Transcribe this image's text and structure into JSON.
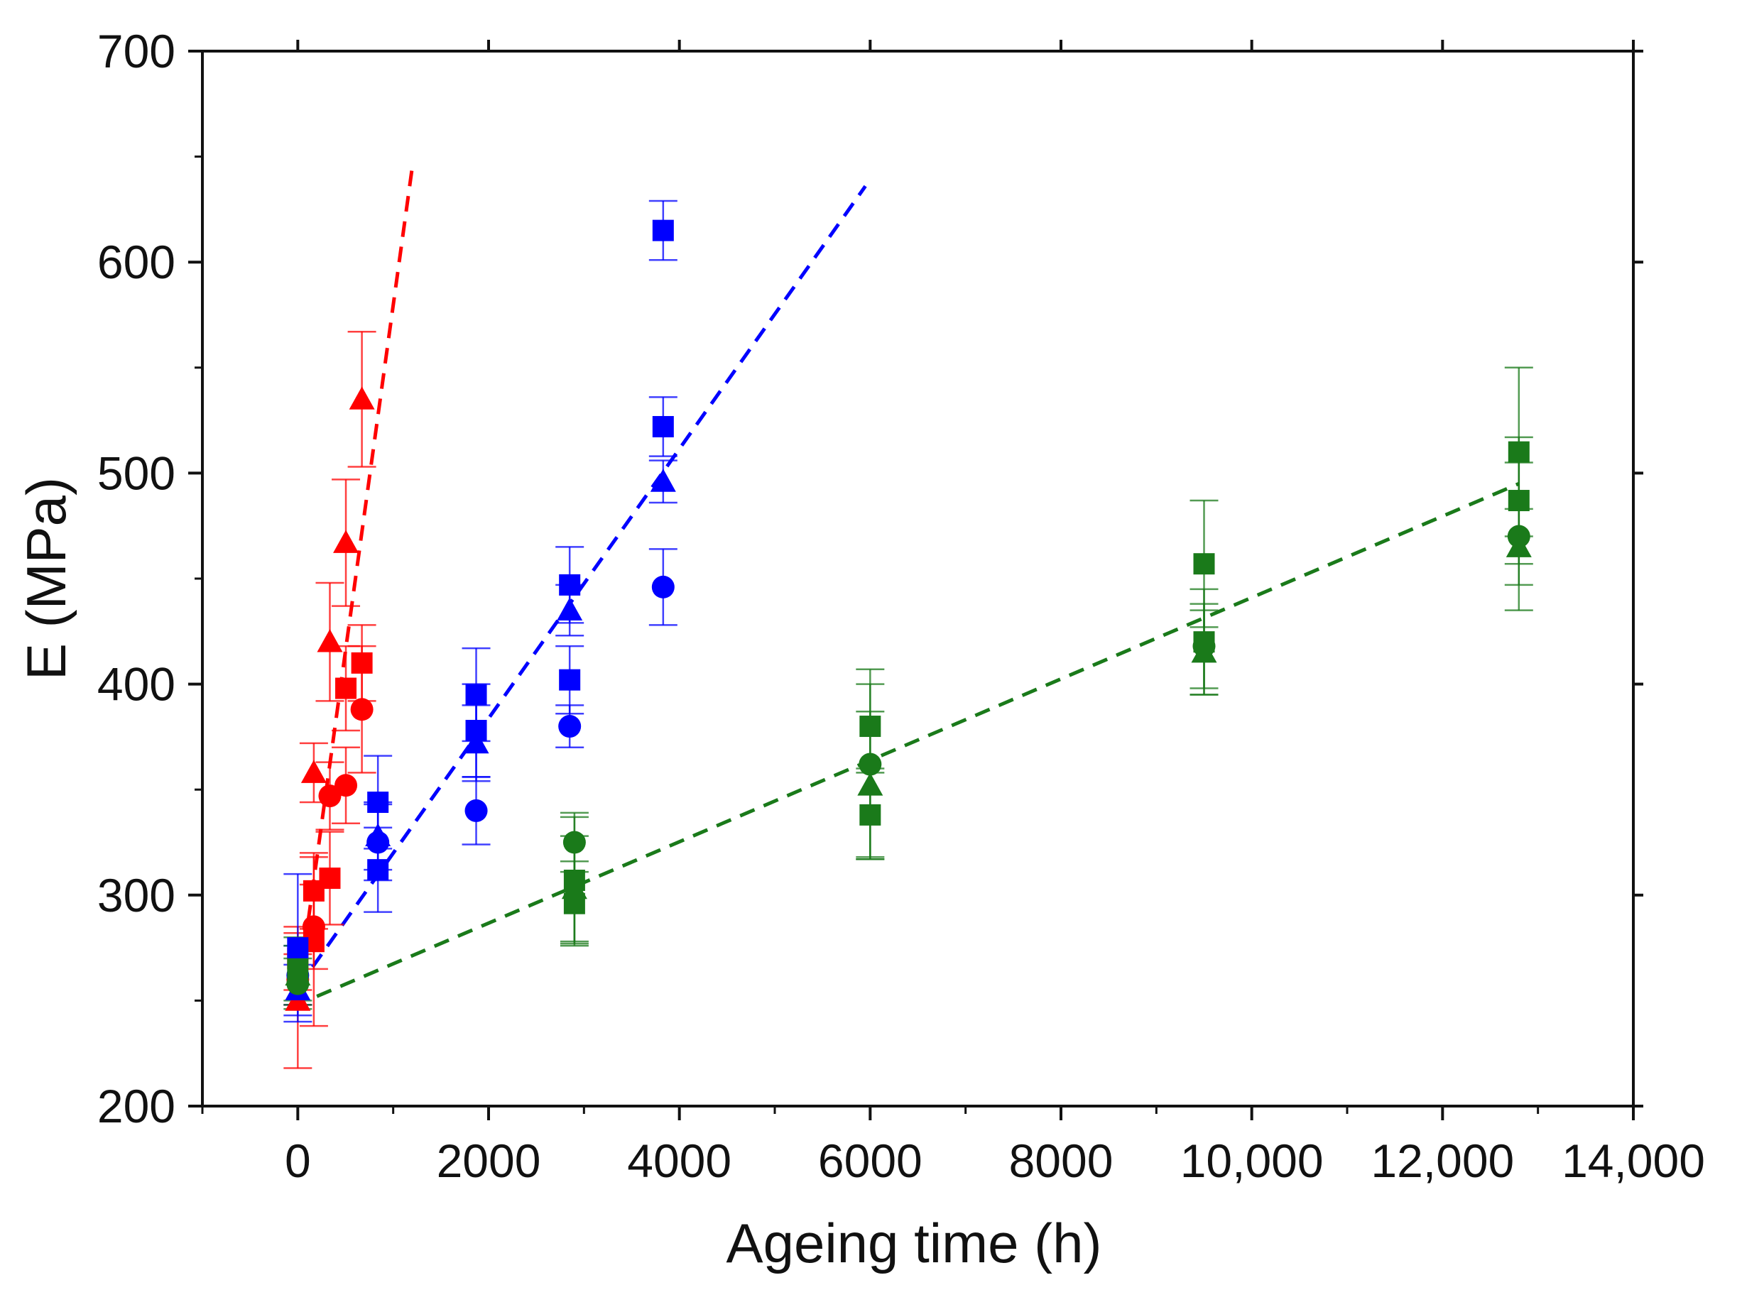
{
  "chart_data": {
    "type": "scatter",
    "title": "",
    "xlabel": "Ageing time (h)",
    "ylabel": "E (MPa)",
    "xlim": [
      -1000,
      14000
    ],
    "ylim": [
      200,
      700
    ],
    "xticks": [
      0,
      2000,
      4000,
      6000,
      8000,
      10000,
      12000,
      14000
    ],
    "xtick_labels": [
      "0",
      "2000",
      "4000",
      "6000",
      "8000",
      "10,000",
      "12,000",
      "14,000"
    ],
    "yticks": [
      200,
      300,
      400,
      500,
      600,
      700
    ],
    "ytick_labels": [
      "200",
      "300",
      "400",
      "500",
      "600",
      "700"
    ],
    "grid": false,
    "legend": "none",
    "series": [
      {
        "name": "red",
        "color": "#ff0000",
        "points": [
          {
            "x": 0,
            "y": 270,
            "err": 15,
            "marker": "square"
          },
          {
            "x": 0,
            "y": 260,
            "err": 12,
            "marker": "circle"
          },
          {
            "x": 0,
            "y": 250,
            "err": 32,
            "marker": "triangle"
          },
          {
            "x": 168,
            "y": 302,
            "err": 18,
            "marker": "square"
          },
          {
            "x": 168,
            "y": 285,
            "err": 20,
            "marker": "circle"
          },
          {
            "x": 168,
            "y": 358,
            "err": 14,
            "marker": "triangle"
          },
          {
            "x": 168,
            "y": 278,
            "err": 40,
            "marker": "square"
          },
          {
            "x": 336,
            "y": 308,
            "err": 22,
            "marker": "square"
          },
          {
            "x": 336,
            "y": 347,
            "err": 16,
            "marker": "circle"
          },
          {
            "x": 336,
            "y": 420,
            "err": 28,
            "marker": "triangle"
          },
          {
            "x": 504,
            "y": 398,
            "err": 20,
            "marker": "square"
          },
          {
            "x": 504,
            "y": 352,
            "err": 18,
            "marker": "circle"
          },
          {
            "x": 504,
            "y": 467,
            "err": 30,
            "marker": "triangle"
          },
          {
            "x": 672,
            "y": 410,
            "err": 18,
            "marker": "square"
          },
          {
            "x": 672,
            "y": 388,
            "err": 30,
            "marker": "circle"
          },
          {
            "x": 672,
            "y": 535,
            "err": 32,
            "marker": "triangle"
          }
        ],
        "trendline": {
          "x": [
            0,
            1200
          ],
          "y": [
            252,
            645
          ]
        }
      },
      {
        "name": "blue",
        "color": "#0000ff",
        "points": [
          {
            "x": 0,
            "y": 275,
            "err": 35,
            "marker": "square"
          },
          {
            "x": 0,
            "y": 262,
            "err": 14,
            "marker": "circle"
          },
          {
            "x": 0,
            "y": 255,
            "err": 12,
            "marker": "triangle"
          },
          {
            "x": 840,
            "y": 344,
            "err": 22,
            "marker": "square"
          },
          {
            "x": 840,
            "y": 312,
            "err": 20,
            "marker": "square"
          },
          {
            "x": 840,
            "y": 325,
            "err": 18,
            "marker": "circle"
          },
          {
            "x": 840,
            "y": 328,
            "err": 16,
            "marker": "triangle"
          },
          {
            "x": 1870,
            "y": 395,
            "err": 22,
            "marker": "square"
          },
          {
            "x": 1870,
            "y": 378,
            "err": 22,
            "marker": "square"
          },
          {
            "x": 1870,
            "y": 340,
            "err": 16,
            "marker": "circle"
          },
          {
            "x": 1870,
            "y": 372,
            "err": 18,
            "marker": "triangle"
          },
          {
            "x": 2850,
            "y": 447,
            "err": 18,
            "marker": "square"
          },
          {
            "x": 2850,
            "y": 402,
            "err": 16,
            "marker": "square"
          },
          {
            "x": 2850,
            "y": 380,
            "err": 10,
            "marker": "circle"
          },
          {
            "x": 2850,
            "y": 435,
            "err": 12,
            "marker": "triangle"
          },
          {
            "x": 3830,
            "y": 615,
            "err": 14,
            "marker": "square"
          },
          {
            "x": 3830,
            "y": 522,
            "err": 14,
            "marker": "square"
          },
          {
            "x": 3830,
            "y": 446,
            "err": 18,
            "marker": "circle"
          },
          {
            "x": 3830,
            "y": 496,
            "err": 10,
            "marker": "triangle"
          }
        ],
        "trendline": {
          "x": [
            0,
            5950
          ],
          "y": [
            256,
            636
          ]
        }
      },
      {
        "name": "green",
        "color": "#1a7a1a",
        "points": [
          {
            "x": 0,
            "y": 265,
            "err": 15,
            "marker": "square"
          },
          {
            "x": 0,
            "y": 258,
            "err": 12,
            "marker": "circle"
          },
          {
            "x": 0,
            "y": 262,
            "err": 14,
            "marker": "triangle"
          },
          {
            "x": 2900,
            "y": 307,
            "err": 30,
            "marker": "square"
          },
          {
            "x": 2900,
            "y": 296,
            "err": 20,
            "marker": "square"
          },
          {
            "x": 2900,
            "y": 325,
            "err": 14,
            "marker": "circle"
          },
          {
            "x": 2900,
            "y": 303,
            "err": 25,
            "marker": "triangle"
          },
          {
            "x": 6000,
            "y": 380,
            "err": 20,
            "marker": "square"
          },
          {
            "x": 6000,
            "y": 338,
            "err": 20,
            "marker": "square"
          },
          {
            "x": 6000,
            "y": 362,
            "err": 45,
            "marker": "circle"
          },
          {
            "x": 6000,
            "y": 352,
            "err": 35,
            "marker": "triangle"
          },
          {
            "x": 9500,
            "y": 457,
            "err": 30,
            "marker": "square"
          },
          {
            "x": 9500,
            "y": 420,
            "err": 25,
            "marker": "square"
          },
          {
            "x": 9500,
            "y": 418,
            "err": 20,
            "marker": "circle"
          },
          {
            "x": 9500,
            "y": 415,
            "err": 20,
            "marker": "triangle"
          },
          {
            "x": 12800,
            "y": 510,
            "err": 40,
            "marker": "square"
          },
          {
            "x": 12800,
            "y": 487,
            "err": 30,
            "marker": "square"
          },
          {
            "x": 12800,
            "y": 470,
            "err": 35,
            "marker": "circle"
          },
          {
            "x": 12800,
            "y": 465,
            "err": 18,
            "marker": "triangle"
          }
        ],
        "trendline": {
          "x": [
            200,
            12800
          ],
          "y": [
            252,
            495
          ]
        }
      }
    ]
  }
}
